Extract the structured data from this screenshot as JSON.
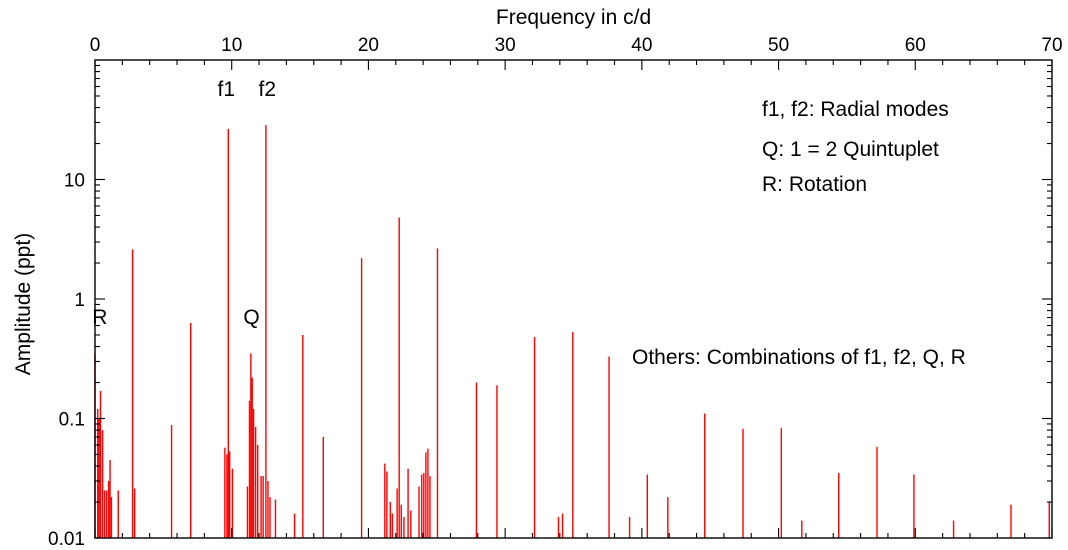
{
  "chart_data": {
    "type": "bar",
    "xlabel": "Frequency in c/d",
    "ylabel": "Amplitude (ppt)",
    "xlim": [
      0,
      70
    ],
    "ylim": [
      0.01,
      100
    ],
    "yscale": "log",
    "x_axis_position": "top",
    "grid": false,
    "x_tick_labels": [
      "0",
      "10",
      "20",
      "30",
      "40",
      "50",
      "60",
      "70"
    ],
    "y_tick_labels": [
      "0.01",
      "0.1",
      "1",
      "10"
    ],
    "series_color": "#ff0000",
    "peaks": [
      {
        "x": 0.0,
        "y": 0.35
      },
      {
        "x": 0.2,
        "y": 0.12
      },
      {
        "x": 0.3,
        "y": 0.1
      },
      {
        "x": 0.4,
        "y": 0.17
      },
      {
        "x": 0.55,
        "y": 0.08
      },
      {
        "x": 0.7,
        "y": 0.025
      },
      {
        "x": 0.85,
        "y": 0.025
      },
      {
        "x": 1.0,
        "y": 0.03
      },
      {
        "x": 1.1,
        "y": 0.045
      },
      {
        "x": 1.2,
        "y": 0.022
      },
      {
        "x": 1.7,
        "y": 0.025
      },
      {
        "x": 2.75,
        "y": 2.6
      },
      {
        "x": 2.9,
        "y": 0.026
      },
      {
        "x": 5.6,
        "y": 0.088
      },
      {
        "x": 7.0,
        "y": 0.63
      },
      {
        "x": 9.5,
        "y": 0.057
      },
      {
        "x": 9.65,
        "y": 0.05
      },
      {
        "x": 9.75,
        "y": 26.5
      },
      {
        "x": 9.85,
        "y": 0.053
      },
      {
        "x": 10.05,
        "y": 0.038
      },
      {
        "x": 11.15,
        "y": 0.027
      },
      {
        "x": 11.3,
        "y": 0.14
      },
      {
        "x": 11.4,
        "y": 0.35
      },
      {
        "x": 11.5,
        "y": 0.22
      },
      {
        "x": 11.6,
        "y": 0.12
      },
      {
        "x": 11.75,
        "y": 0.085
      },
      {
        "x": 11.9,
        "y": 0.06
      },
      {
        "x": 12.15,
        "y": 0.033
      },
      {
        "x": 12.3,
        "y": 0.033
      },
      {
        "x": 12.5,
        "y": 28.5
      },
      {
        "x": 12.65,
        "y": 0.03
      },
      {
        "x": 12.8,
        "y": 0.022
      },
      {
        "x": 13.2,
        "y": 0.021
      },
      {
        "x": 14.6,
        "y": 0.016
      },
      {
        "x": 15.2,
        "y": 0.5
      },
      {
        "x": 16.7,
        "y": 0.07
      },
      {
        "x": 19.5,
        "y": 2.2
      },
      {
        "x": 21.2,
        "y": 0.042
      },
      {
        "x": 21.35,
        "y": 0.036
      },
      {
        "x": 21.6,
        "y": 0.02
      },
      {
        "x": 21.75,
        "y": 0.016
      },
      {
        "x": 22.1,
        "y": 0.026
      },
      {
        "x": 22.25,
        "y": 4.8
      },
      {
        "x": 22.4,
        "y": 0.019
      },
      {
        "x": 22.6,
        "y": 0.015
      },
      {
        "x": 22.9,
        "y": 0.038
      },
      {
        "x": 23.1,
        "y": 0.017
      },
      {
        "x": 23.7,
        "y": 0.027
      },
      {
        "x": 23.9,
        "y": 0.034
      },
      {
        "x": 24.05,
        "y": 0.035
      },
      {
        "x": 24.2,
        "y": 0.052
      },
      {
        "x": 24.35,
        "y": 0.056
      },
      {
        "x": 24.5,
        "y": 0.033
      },
      {
        "x": 25.05,
        "y": 2.65
      },
      {
        "x": 27.9,
        "y": 0.2
      },
      {
        "x": 29.4,
        "y": 0.19
      },
      {
        "x": 32.15,
        "y": 0.48
      },
      {
        "x": 33.9,
        "y": 0.015
      },
      {
        "x": 34.2,
        "y": 0.016
      },
      {
        "x": 34.95,
        "y": 0.53
      },
      {
        "x": 37.6,
        "y": 0.33
      },
      {
        "x": 39.1,
        "y": 0.015
      },
      {
        "x": 40.4,
        "y": 0.034
      },
      {
        "x": 41.9,
        "y": 0.022
      },
      {
        "x": 44.6,
        "y": 0.11
      },
      {
        "x": 47.4,
        "y": 0.082
      },
      {
        "x": 50.2,
        "y": 0.083
      },
      {
        "x": 51.7,
        "y": 0.014
      },
      {
        "x": 54.4,
        "y": 0.035
      },
      {
        "x": 57.2,
        "y": 0.058
      },
      {
        "x": 59.9,
        "y": 0.034
      },
      {
        "x": 62.8,
        "y": 0.014
      },
      {
        "x": 67.0,
        "y": 0.019
      },
      {
        "x": 69.8,
        "y": 0.02
      }
    ],
    "peak_labels": [
      {
        "text": "R",
        "x": 0.35,
        "y": 0.62
      },
      {
        "text": "f1",
        "x": 9.6,
        "y": 50
      },
      {
        "text": "f2",
        "x": 12.6,
        "y": 50
      },
      {
        "text": "Q",
        "x": 11.45,
        "y": 0.62
      }
    ],
    "annotations": [
      "f1, f2: Radial modes",
      "Q: 1 = 2 Quintuplet",
      "R: Rotation",
      "Others: Combinations of f1, f2, Q, R"
    ]
  }
}
